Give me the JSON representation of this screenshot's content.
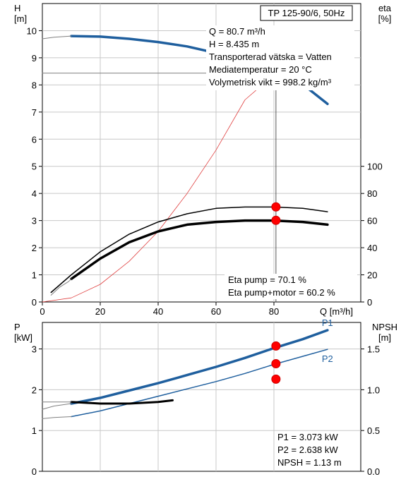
{
  "colors": {
    "blue": "#1f5f9e",
    "black": "#000000",
    "red_curve": "#e04040",
    "dot_red": "#ff0000",
    "dot_yellow": "#ffff00",
    "grid": "#c8c8c8"
  },
  "chart_data": [
    {
      "type": "line",
      "title": "TP 125-90/6, 50Hz",
      "xlabel": "Q [m³/h]",
      "x_ticks": [
        "0",
        "20",
        "40",
        "60",
        "80"
      ],
      "xlim": [
        0,
        110
      ],
      "ylabel_left": [
        "H",
        "[m]"
      ],
      "y_ticks_left": [
        "0",
        "1",
        "2",
        "3",
        "4",
        "5",
        "6",
        "7",
        "8",
        "9",
        "10"
      ],
      "ylim_left": [
        0,
        11
      ],
      "ylabel_right": [
        "eta",
        "[%]"
      ],
      "y_ticks_right": [
        "0",
        "20",
        "40",
        "60",
        "80",
        "100"
      ],
      "ylim_right": [
        0,
        220
      ],
      "series": [
        {
          "axis": "left",
          "color": "#1f5f9e",
          "width": 3.5,
          "x": [
            10,
            20,
            30,
            40,
            50,
            57
          ],
          "y": [
            9.8,
            9.78,
            9.7,
            9.58,
            9.42,
            9.25
          ]
        },
        {
          "axis": "left",
          "color": "#1f5f9e",
          "width": 3.5,
          "x": [
            78,
            85,
            92,
            98.5
          ],
          "y": [
            8.55,
            8.25,
            7.85,
            7.3
          ]
        },
        {
          "axis": "left",
          "color": "#808080",
          "width": 1,
          "x": [
            0,
            4,
            10
          ],
          "y": [
            9.7,
            9.76,
            9.8
          ]
        },
        {
          "axis": "left",
          "color": "#808080",
          "width": 1,
          "x": [
            0,
            80.7
          ],
          "y": [
            8.435,
            8.435
          ]
        },
        {
          "axis": "right",
          "color": "#e04040",
          "width": 0.8,
          "x": [
            0,
            10,
            20,
            30,
            40,
            50,
            60,
            70,
            80.7
          ],
          "y": [
            0,
            3,
            13,
            30,
            52,
            80,
            112,
            149,
            168.7
          ]
        },
        {
          "axis": "right",
          "color": "#000000",
          "width": 1.5,
          "x": [
            3,
            10,
            20,
            30,
            40,
            50,
            60,
            70,
            80,
            90,
            98.5
          ],
          "y": [
            7,
            20,
            37,
            50,
            59,
            65,
            69,
            70,
            70,
            69,
            66.5
          ]
        },
        {
          "axis": "right",
          "color": "#000000",
          "width": 3.5,
          "x": [
            10,
            20,
            30,
            40,
            50,
            60,
            70,
            80,
            90,
            98.5
          ],
          "y": [
            17,
            32,
            44,
            52,
            57,
            59,
            60,
            60,
            59,
            57
          ]
        },
        {
          "axis": "right",
          "color": "#808080",
          "width": 1,
          "x": [
            3,
            6,
            9,
            10
          ],
          "y": [
            5,
            11,
            15,
            17
          ]
        }
      ],
      "operating_line": {
        "x": 80.7,
        "y_top": 8.435
      },
      "markers": [
        {
          "axis": "left",
          "x": 80.7,
          "y": 8.435,
          "fill": "#ffff00"
        },
        {
          "axis": "right",
          "x": 80.7,
          "y": 70.1,
          "fill": "#ff0000"
        },
        {
          "axis": "right",
          "x": 80.7,
          "y": 60.2,
          "fill": "#ff0000"
        }
      ],
      "annotations": [
        "Q = 80.7 m³/h",
        "H = 8.435 m",
        "Transporterad vätska = Vatten",
        "Mediatemperatur = 20 °C",
        "Volymetrisk vikt = 998.2 kg/m³"
      ],
      "annotations_bottom": [
        "Eta pump = 70.1 %",
        "Eta pump+motor = 60.2 %"
      ]
    },
    {
      "type": "line",
      "ylabel_left": [
        "P",
        "[kW]"
      ],
      "y_ticks_left": [
        "0",
        "1",
        "2",
        "3"
      ],
      "ylim_left": [
        0,
        3.65
      ],
      "ylabel_right": [
        "NPSH",
        "[m]"
      ],
      "y_ticks_right": [
        "0.0",
        "0.5",
        "1.0",
        "1.5"
      ],
      "ylim_right": [
        0,
        1.825
      ],
      "xlim": [
        0,
        110
      ],
      "series": [
        {
          "name": "P1",
          "axis": "left",
          "color": "#1f5f9e",
          "width": 3.5,
          "x": [
            10,
            20,
            30,
            40,
            50,
            60,
            70,
            80,
            90,
            98.5
          ],
          "y": [
            1.66,
            1.8,
            1.98,
            2.16,
            2.36,
            2.56,
            2.78,
            3.02,
            3.24,
            3.46
          ]
        },
        {
          "name": "P2",
          "axis": "left",
          "color": "#1f5f9e",
          "width": 1.5,
          "x": [
            10,
            20,
            30,
            40,
            50,
            60,
            70,
            80,
            90,
            98.5
          ],
          "y": [
            1.34,
            1.48,
            1.66,
            1.84,
            2.02,
            2.2,
            2.4,
            2.62,
            2.82,
            2.99
          ]
        },
        {
          "axis": "right",
          "color": "#000000",
          "width": 3,
          "x": [
            10,
            20,
            30,
            40,
            45
          ],
          "y": [
            0.85,
            0.83,
            0.83,
            0.85,
            0.87
          ]
        },
        {
          "axis": "left",
          "color": "#808080",
          "width": 1,
          "x": [
            0,
            4,
            10
          ],
          "y": [
            1.52,
            1.6,
            1.66
          ]
        },
        {
          "axis": "left",
          "color": "#808080",
          "width": 1,
          "x": [
            0,
            4,
            10
          ],
          "y": [
            1.29,
            1.32,
            1.34
          ]
        },
        {
          "axis": "right",
          "color": "#808080",
          "width": 1,
          "x": [
            0,
            10
          ],
          "y": [
            0.85,
            0.85
          ]
        }
      ],
      "markers": [
        {
          "axis": "left",
          "x": 80.7,
          "y": 3.073,
          "fill": "#ff0000"
        },
        {
          "axis": "left",
          "x": 80.7,
          "y": 2.638,
          "fill": "#ff0000"
        },
        {
          "axis": "right",
          "x": 80.7,
          "y": 1.13,
          "fill": "#ff0000"
        }
      ],
      "series_labels": [
        {
          "text": "P1",
          "x": 98.5,
          "y": 3.46
        },
        {
          "text": "P2",
          "x": 98.5,
          "y": 2.99
        }
      ],
      "annotations": [
        "P1 = 3.073 kW",
        "P2 = 2.638 kW",
        "NPSH = 1.13 m"
      ]
    }
  ]
}
